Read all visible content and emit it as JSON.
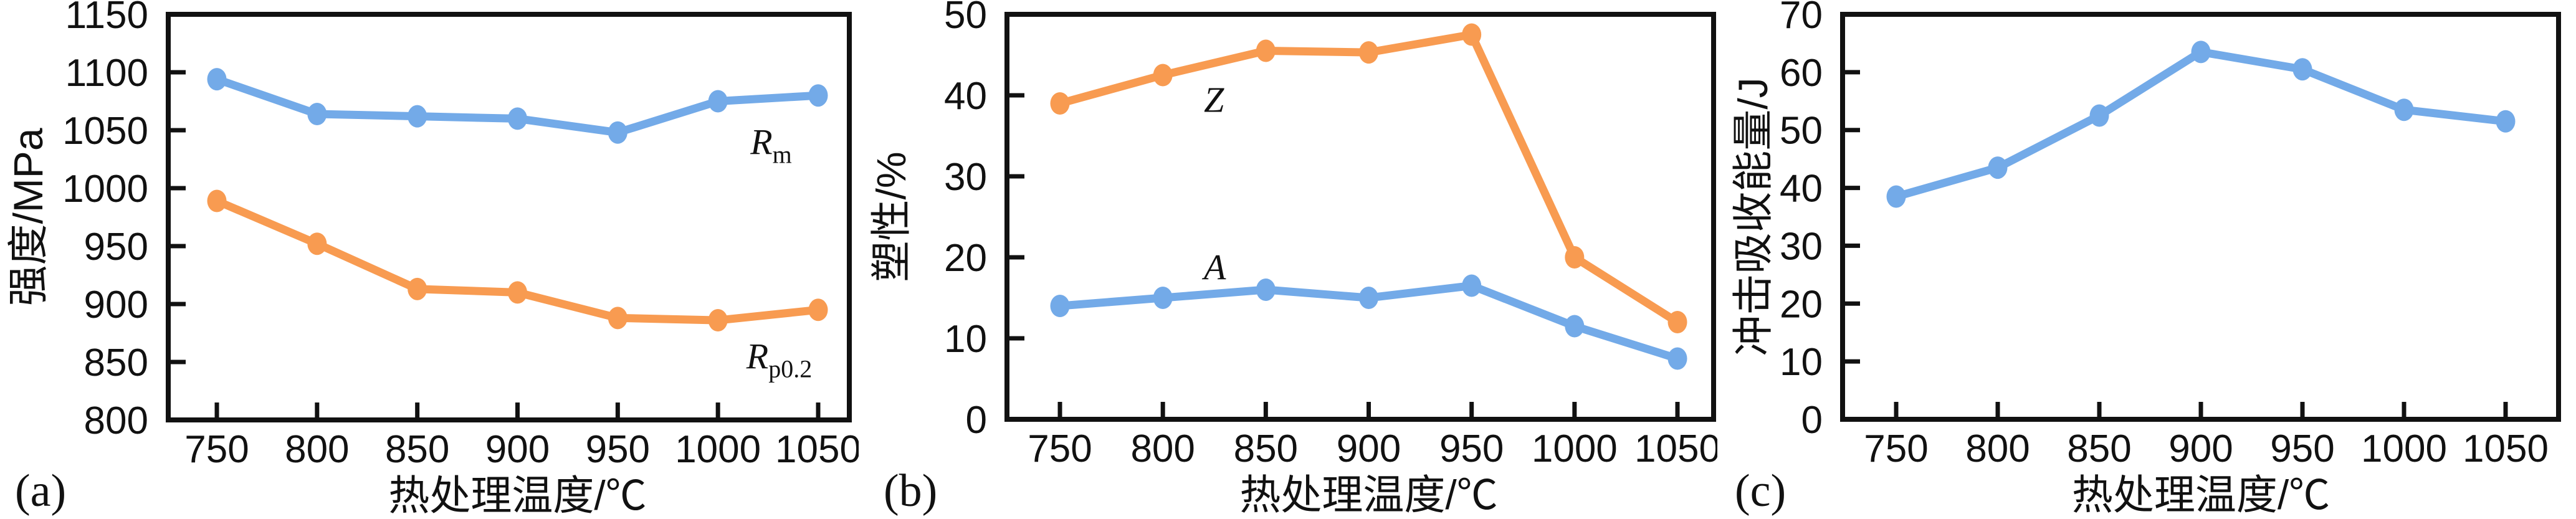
{
  "page": {
    "background": "#ffffff"
  },
  "colors": {
    "blue_series": "#73aae8",
    "orange_series": "#f89b51",
    "axis": "#111111"
  },
  "chart_data": [
    {
      "panel_label": "(a)",
      "type": "line",
      "title": "",
      "xlabel": "热处理温度/℃",
      "ylabel": "强度/MPa",
      "x": [
        750,
        800,
        850,
        900,
        950,
        1000,
        1050
      ],
      "xticks": [
        "750",
        "800",
        "850",
        "900",
        "950",
        "1000",
        "1050"
      ],
      "xlim": [
        750,
        1050
      ],
      "ylim": [
        800,
        1150
      ],
      "yticks": [
        800,
        850,
        900,
        950,
        1000,
        1050,
        1100,
        1150
      ],
      "grid": false,
      "legend_position": "inline-labels",
      "series": [
        {
          "name": "Rm",
          "label_base": "R",
          "label_sub": "m",
          "label_at": {
            "x": 1028,
            "y": 1040
          },
          "color": "#73aae8",
          "values": [
            1094,
            1064,
            1062,
            1060,
            1048,
            1075,
            1080
          ]
        },
        {
          "name": "Rp0.2",
          "label_base": "R",
          "label_sub": "p0.2",
          "label_at": {
            "x": 1026,
            "y": 855
          },
          "color": "#f89b51",
          "values": [
            989,
            952,
            913,
            910,
            888,
            886,
            895
          ]
        }
      ]
    },
    {
      "panel_label": "(b)",
      "type": "line",
      "title": "",
      "xlabel": "热处理温度/℃",
      "ylabel": "塑性/%",
      "x": [
        750,
        800,
        850,
        900,
        950,
        1000,
        1050
      ],
      "xticks": [
        "750",
        "800",
        "850",
        "900",
        "950",
        "1000",
        "1050"
      ],
      "xlim": [
        750,
        1050
      ],
      "ylim": [
        0,
        50
      ],
      "yticks": [
        0,
        10,
        20,
        30,
        40,
        50
      ],
      "grid": false,
      "legend_position": "inline-labels",
      "series": [
        {
          "name": "Z",
          "label_base": "Z",
          "label_sub": "",
          "label_at": {
            "x": 826,
            "y": 39.5
          },
          "color": "#f89b51",
          "values": [
            39,
            42.5,
            45.5,
            45.3,
            47.5,
            20,
            12
          ]
        },
        {
          "name": "A",
          "label_base": "A",
          "label_sub": "",
          "label_at": {
            "x": 826,
            "y": 18.8
          },
          "color": "#73aae8",
          "values": [
            14,
            15,
            16,
            15,
            16.5,
            11.5,
            7.5
          ]
        }
      ]
    },
    {
      "panel_label": "(c)",
      "type": "line",
      "title": "",
      "xlabel": "热处理温度/℃",
      "ylabel": "冲击吸收能量/J",
      "x": [
        750,
        800,
        850,
        900,
        950,
        1000,
        1050
      ],
      "xticks": [
        "750",
        "800",
        "850",
        "900",
        "950",
        "1000",
        "1050"
      ],
      "xlim": [
        750,
        1050
      ],
      "ylim": [
        0,
        70
      ],
      "yticks": [
        0,
        10,
        20,
        30,
        40,
        50,
        60,
        70
      ],
      "grid": false,
      "legend_position": "none",
      "series": [
        {
          "name": "impact-energy",
          "label_base": "",
          "label_sub": "",
          "label_at": null,
          "color": "#73aae8",
          "values": [
            38.5,
            43.5,
            52.5,
            63.5,
            60.5,
            53.5,
            51.5
          ]
        }
      ]
    }
  ]
}
